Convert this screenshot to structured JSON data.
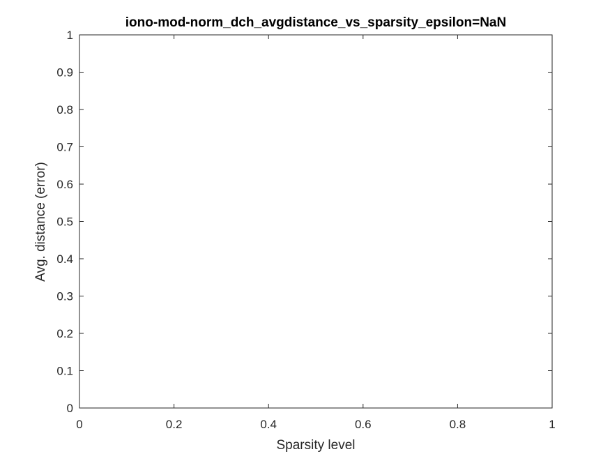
{
  "chart_data": {
    "type": "line",
    "title": "iono-mod-norm_dch_avgdistance_vs_sparsity_epsilon=NaN",
    "xlabel": "Sparsity level",
    "ylabel": "Avg. distance (error)",
    "xlim": [
      0,
      1
    ],
    "ylim": [
      0,
      1
    ],
    "xticks": [
      0,
      0.2,
      0.4,
      0.6,
      0.8,
      1
    ],
    "xtick_labels": [
      "0",
      "0.2",
      "0.4",
      "0.6",
      "0.8",
      "1"
    ],
    "yticks": [
      0,
      0.1,
      0.2,
      0.3,
      0.4,
      0.5,
      0.6,
      0.7,
      0.8,
      0.9,
      1
    ],
    "ytick_labels": [
      "0",
      "0.1",
      "0.2",
      "0.3",
      "0.4",
      "0.5",
      "0.6",
      "0.7",
      "0.8",
      "0.9",
      "1"
    ],
    "grid": false,
    "box": true,
    "series": []
  },
  "colors": {
    "axes": "#262626",
    "background": "#ffffff",
    "title": "#000000"
  }
}
